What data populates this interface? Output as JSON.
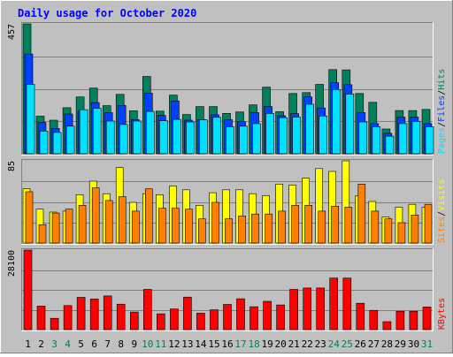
{
  "title": "Daily usage for October 2020",
  "colors": {
    "background": "#c0c0c0",
    "title": "#0000ff",
    "hits": "#00805c",
    "files": "#0040ff",
    "pages": "#00e0ff",
    "visits": "#ffff00",
    "sites": "#ff8000",
    "kbytes": "#ff0000",
    "weekend_label": "#00805c",
    "weekday_label": "#000000"
  },
  "chart_data": [
    {
      "type": "bar",
      "name": "hits-files-pages",
      "ymax_label": "457",
      "ymax": 457,
      "legend": [
        "Pages",
        "Files",
        "Hits"
      ],
      "categories": [
        "1",
        "2",
        "3",
        "4",
        "5",
        "6",
        "7",
        "8",
        "9",
        "10",
        "11",
        "12",
        "13",
        "14",
        "15",
        "16",
        "17",
        "18",
        "19",
        "20",
        "21",
        "22",
        "23",
        "24",
        "25",
        "26",
        "27",
        "28",
        "29",
        "30",
        "31"
      ],
      "series": [
        {
          "name": "Hits",
          "values": [
            457,
            132,
            118,
            162,
            200,
            231,
            169,
            209,
            151,
            272,
            150,
            206,
            138,
            166,
            166,
            142,
            147,
            172,
            234,
            148,
            212,
            215,
            244,
            296,
            295,
            212,
            181,
            87,
            152,
            152,
            156
          ]
        },
        {
          "name": "Files",
          "values": [
            351,
            110,
            89,
            140,
            150,
            180,
            145,
            170,
            120,
            213,
            135,
            186,
            118,
            120,
            137,
            120,
            113,
            145,
            166,
            134,
            141,
            200,
            161,
            250,
            243,
            145,
            106,
            72,
            129,
            129,
            106
          ]
        },
        {
          "name": "Pages",
          "values": [
            244,
            80,
            75,
            97,
            155,
            160,
            115,
            103,
            115,
            149,
            116,
            121,
            112,
            119,
            128,
            95,
            97,
            106,
            142,
            127,
            129,
            174,
            133,
            226,
            210,
            112,
            95,
            62,
            106,
            114,
            95
          ]
        }
      ]
    },
    {
      "type": "bar",
      "name": "visits-sites",
      "ymax_label": "85",
      "ymax": 85,
      "legend": [
        "Sites",
        "Visits"
      ],
      "categories": [
        "1",
        "2",
        "3",
        "4",
        "5",
        "6",
        "7",
        "8",
        "9",
        "10",
        "11",
        "12",
        "13",
        "14",
        "15",
        "16",
        "17",
        "18",
        "19",
        "20",
        "21",
        "22",
        "23",
        "24",
        "25",
        "26",
        "27",
        "28",
        "29",
        "30",
        "31"
      ],
      "series": [
        {
          "name": "Visits",
          "values": [
            56,
            35,
            32,
            33,
            50,
            64,
            51,
            78,
            42,
            51,
            50,
            59,
            55,
            39,
            52,
            55,
            55,
            51,
            49,
            61,
            60,
            67,
            77,
            74,
            85,
            49,
            43,
            27,
            37,
            40,
            37
          ]
        },
        {
          "name": "Sites",
          "values": [
            53,
            19,
            31,
            35,
            39,
            57,
            44,
            48,
            33,
            56,
            36,
            36,
            35,
            25,
            42,
            25,
            28,
            30,
            30,
            33,
            39,
            39,
            33,
            38,
            37,
            61,
            33,
            25,
            21,
            29,
            40
          ]
        }
      ]
    },
    {
      "type": "bar",
      "name": "kbytes",
      "ymax_label": "28100",
      "ymax": 28100,
      "legend": [
        "KBytes"
      ],
      "categories": [
        "1",
        "2",
        "3",
        "4",
        "5",
        "6",
        "7",
        "8",
        "9",
        "10",
        "11",
        "12",
        "13",
        "14",
        "15",
        "16",
        "17",
        "18",
        "19",
        "20",
        "21",
        "22",
        "23",
        "24",
        "25",
        "26",
        "27",
        "28",
        "29",
        "30",
        "31"
      ],
      "series": [
        {
          "name": "KBytes",
          "values": [
            28100,
            8300,
            4000,
            8500,
            11400,
            10800,
            11900,
            9000,
            6200,
            14200,
            5600,
            7300,
            11500,
            5800,
            7000,
            8900,
            10900,
            8100,
            10000,
            8700,
            14200,
            14700,
            14700,
            18200,
            18200,
            9300,
            6800,
            2800,
            6500,
            6500,
            8000
          ]
        }
      ]
    }
  ],
  "weekend_days": [
    "3",
    "4",
    "10",
    "11",
    "17",
    "18",
    "24",
    "25",
    "31"
  ]
}
